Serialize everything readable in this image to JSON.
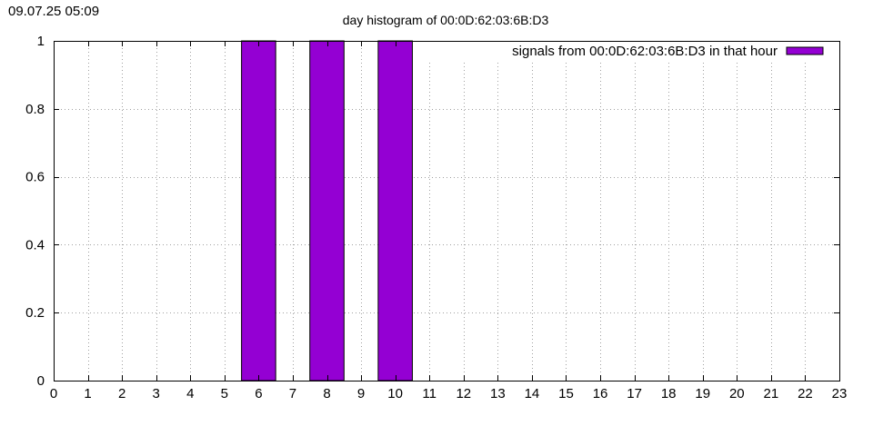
{
  "timestamp": "09.07.25 05:09",
  "chart_data": {
    "type": "bar",
    "title": "day histogram of 00:0D:62:03:6B:D3",
    "xlabel": "",
    "ylabel": "",
    "xlim": [
      0,
      23
    ],
    "ylim": [
      0,
      1
    ],
    "x_ticks": [
      "0",
      "1",
      "2",
      "3",
      "4",
      "5",
      "6",
      "7",
      "8",
      "9",
      "10",
      "11",
      "12",
      "13",
      "14",
      "15",
      "16",
      "17",
      "18",
      "19",
      "20",
      "21",
      "22",
      "23"
    ],
    "y_ticks": [
      "0",
      "0.2",
      "0.4",
      "0.6",
      "0.8",
      "1"
    ],
    "grid": true,
    "legend_position": "top-right",
    "series": [
      {
        "name": "signals from 00:0D:62:03:6B:D3 in that hour",
        "color": "#9400D3",
        "x": [
          6,
          8,
          10
        ],
        "values": [
          1,
          1,
          1
        ]
      }
    ]
  }
}
